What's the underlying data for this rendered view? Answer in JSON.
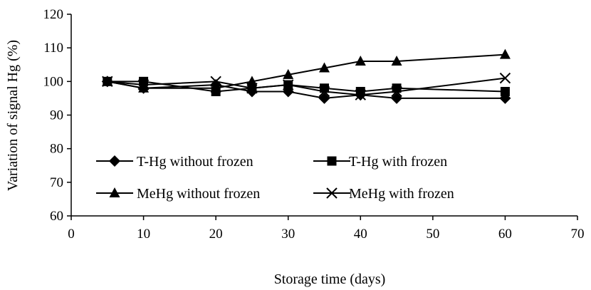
{
  "chart_data": {
    "type": "line",
    "xlabel": "Storage time (days)",
    "ylabel": "Variation of signal Hg (%)",
    "xlim": [
      0,
      70
    ],
    "ylim": [
      60,
      120
    ],
    "xticks": [
      "0",
      "10",
      "20",
      "30",
      "40",
      "50",
      "60",
      "70"
    ],
    "yticks": [
      "60",
      "70",
      "80",
      "90",
      "100",
      "110",
      "120"
    ],
    "grid": false,
    "legend_position": "lower-left inside plot",
    "series": [
      {
        "name": "T-Hg without frozen",
        "marker": "diamond",
        "color": "#000000",
        "points": [
          [
            5,
            100
          ],
          [
            10,
            98
          ],
          [
            20,
            99
          ],
          [
            25,
            97
          ],
          [
            30,
            97
          ],
          [
            35,
            95
          ],
          [
            40,
            96
          ],
          [
            45,
            95
          ],
          [
            60,
            95
          ]
        ]
      },
      {
        "name": "T-Hg with frozen",
        "marker": "square",
        "color": "#000000",
        "points": [
          [
            5,
            100
          ],
          [
            10,
            100
          ],
          [
            20,
            97
          ],
          [
            25,
            98
          ],
          [
            30,
            99
          ],
          [
            35,
            98
          ],
          [
            40,
            97
          ],
          [
            45,
            98
          ],
          [
            60,
            97
          ]
        ]
      },
      {
        "name": "MeHg without frozen",
        "marker": "triangle",
        "color": "#000000",
        "points": [
          [
            5,
            100
          ],
          [
            10,
            98
          ],
          [
            20,
            98
          ],
          [
            25,
            100
          ],
          [
            30,
            102
          ],
          [
            35,
            104
          ],
          [
            40,
            106
          ],
          [
            45,
            106
          ],
          [
            60,
            108
          ]
        ]
      },
      {
        "name": "MeHg with frozen",
        "marker": "x",
        "color": "#000000",
        "points": [
          [
            5,
            100
          ],
          [
            10,
            99
          ],
          [
            20,
            100
          ],
          [
            25,
            98
          ],
          [
            30,
            99
          ],
          [
            35,
            97
          ],
          [
            40,
            96
          ],
          [
            45,
            97
          ],
          [
            60,
            101
          ]
        ]
      }
    ]
  }
}
